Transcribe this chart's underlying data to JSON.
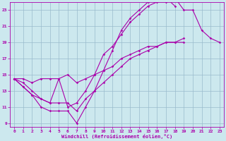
{
  "xlabel": "Windchill (Refroidissement éolien,°C)",
  "background_color": "#cce8ee",
  "line_color": "#aa00aa",
  "grid_color": "#99bbcc",
  "xlim": [
    -0.5,
    23.5
  ],
  "ylim": [
    8.5,
    24.0
  ],
  "xticks": [
    0,
    1,
    2,
    3,
    4,
    5,
    6,
    7,
    8,
    9,
    10,
    11,
    12,
    13,
    14,
    15,
    16,
    17,
    18,
    19,
    20,
    21,
    22,
    23
  ],
  "yticks": [
    9,
    11,
    13,
    15,
    17,
    19,
    21,
    23
  ],
  "series": [
    {
      "x": [
        0,
        1,
        2,
        3,
        4,
        5,
        6,
        7,
        8,
        9,
        10,
        11,
        12,
        13,
        14,
        15,
        16,
        17,
        18,
        19,
        20,
        21,
        22,
        23
      ],
      "y": [
        14.5,
        13.5,
        12.5,
        11.0,
        10.5,
        10.5,
        10.5,
        9.0,
        11.0,
        13.0,
        15.5,
        18.0,
        20.5,
        22.0,
        23.0,
        24.0,
        24.5,
        24.5,
        23.5,
        null,
        null,
        null,
        null,
        null
      ]
    },
    {
      "x": [
        0,
        1,
        2,
        3,
        4,
        5,
        6,
        7,
        8,
        9,
        10,
        11,
        12,
        13,
        14,
        15,
        16,
        17,
        18,
        19,
        20,
        21,
        22,
        23
      ],
      "y": [
        14.5,
        14.0,
        13.0,
        12.0,
        11.5,
        14.5,
        11.0,
        11.5,
        13.0,
        15.0,
        17.5,
        18.5,
        20.0,
        21.5,
        22.5,
        23.5,
        24.0,
        24.0,
        24.5,
        23.0,
        23.0,
        20.5,
        19.5,
        19.0
      ]
    },
    {
      "x": [
        0,
        1,
        2,
        3,
        4,
        5,
        6,
        7,
        8,
        9,
        10,
        11,
        12,
        13,
        14,
        15,
        16,
        17,
        18,
        19,
        20,
        21,
        22,
        23
      ],
      "y": [
        14.5,
        14.5,
        14.0,
        14.5,
        14.5,
        14.5,
        15.0,
        14.0,
        14.5,
        15.0,
        15.5,
        16.0,
        17.0,
        17.5,
        18.0,
        18.5,
        18.5,
        19.0,
        19.0,
        19.0,
        null,
        null,
        null,
        null
      ]
    },
    {
      "x": [
        0,
        1,
        2,
        3,
        4,
        5,
        6,
        7,
        8,
        9,
        10,
        11,
        12,
        13,
        14,
        15,
        16,
        17,
        18,
        19,
        20,
        21,
        22,
        23
      ],
      "y": [
        14.5,
        13.5,
        12.5,
        12.0,
        11.5,
        11.5,
        11.5,
        10.5,
        12.0,
        13.0,
        14.0,
        15.0,
        16.0,
        17.0,
        17.5,
        18.0,
        18.5,
        19.0,
        19.0,
        19.5,
        null,
        null,
        null,
        null
      ]
    }
  ]
}
